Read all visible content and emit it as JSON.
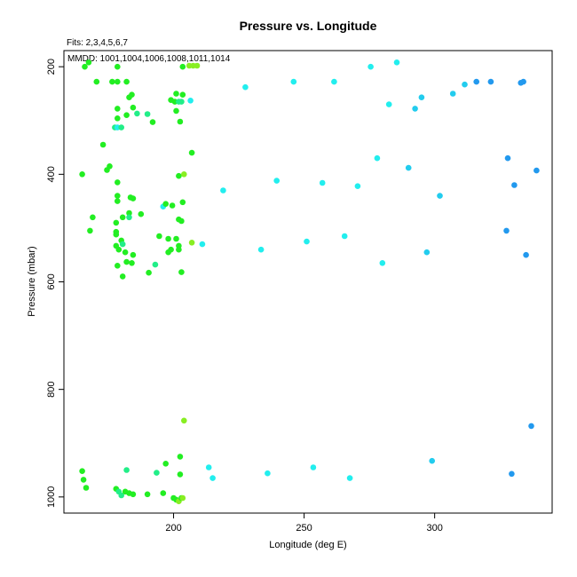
{
  "chart_data": {
    "type": "scatter",
    "title": "Pressure vs. Longitude",
    "annotations": {
      "fits": "Fits: 2,3,4,5,6,7",
      "mmdd": "MMDD: 1001,1004,1006,1008,1011,1014"
    },
    "xlabel": "Longitude (deg E)",
    "ylabel": "Pressure (mbar)",
    "xlim": [
      158,
      345
    ],
    "ylim": [
      1030,
      170
    ],
    "y_inverted": true,
    "xticks": [
      200,
      250,
      300
    ],
    "yticks": [
      200,
      400,
      600,
      800,
      1000
    ],
    "grid": false,
    "colors": {
      "green": "#22ee22",
      "lime": "#88ee22",
      "spring": "#22ee88",
      "cyan": "#22eeee",
      "sky": "#22ccee",
      "blue": "#2299ee"
    },
    "points": [
      {
        "x": 167.5,
        "y": 192,
        "c": "green"
      },
      {
        "x": 166,
        "y": 200,
        "c": "green"
      },
      {
        "x": 170.5,
        "y": 228,
        "c": "green"
      },
      {
        "x": 176.5,
        "y": 228,
        "c": "green"
      },
      {
        "x": 178.5,
        "y": 200,
        "c": "green"
      },
      {
        "x": 178.5,
        "y": 228,
        "c": "green"
      },
      {
        "x": 182,
        "y": 228,
        "c": "green"
      },
      {
        "x": 183,
        "y": 257,
        "c": "green"
      },
      {
        "x": 184,
        "y": 252,
        "c": "green"
      },
      {
        "x": 178.5,
        "y": 278,
        "c": "green"
      },
      {
        "x": 178.5,
        "y": 296,
        "c": "green"
      },
      {
        "x": 182,
        "y": 290,
        "c": "green"
      },
      {
        "x": 184.5,
        "y": 276,
        "c": "green"
      },
      {
        "x": 186,
        "y": 287,
        "c": "spring"
      },
      {
        "x": 190,
        "y": 288,
        "c": "spring"
      },
      {
        "x": 192,
        "y": 303,
        "c": "green"
      },
      {
        "x": 177.5,
        "y": 313,
        "c": "spring"
      },
      {
        "x": 178.5,
        "y": 313,
        "c": "cyan"
      },
      {
        "x": 180,
        "y": 313,
        "c": "spring"
      },
      {
        "x": 173,
        "y": 345,
        "c": "green"
      },
      {
        "x": 174.5,
        "y": 392,
        "c": "green"
      },
      {
        "x": 175.5,
        "y": 385,
        "c": "green"
      },
      {
        "x": 165,
        "y": 400,
        "c": "green"
      },
      {
        "x": 178.5,
        "y": 415,
        "c": "green"
      },
      {
        "x": 178.5,
        "y": 440,
        "c": "green"
      },
      {
        "x": 178.5,
        "y": 450,
        "c": "green"
      },
      {
        "x": 183.5,
        "y": 443,
        "c": "green"
      },
      {
        "x": 184.5,
        "y": 445,
        "c": "green"
      },
      {
        "x": 169,
        "y": 480,
        "c": "green"
      },
      {
        "x": 168,
        "y": 505,
        "c": "green"
      },
      {
        "x": 178,
        "y": 490,
        "c": "green"
      },
      {
        "x": 178,
        "y": 507,
        "c": "green"
      },
      {
        "x": 178,
        "y": 512,
        "c": "green"
      },
      {
        "x": 180.5,
        "y": 480,
        "c": "green"
      },
      {
        "x": 183,
        "y": 472,
        "c": "green"
      },
      {
        "x": 183,
        "y": 480,
        "c": "spring"
      },
      {
        "x": 187.5,
        "y": 474,
        "c": "green"
      },
      {
        "x": 178,
        "y": 533,
        "c": "green"
      },
      {
        "x": 180,
        "y": 523,
        "c": "green"
      },
      {
        "x": 180.5,
        "y": 530,
        "c": "spring"
      },
      {
        "x": 179,
        "y": 540,
        "c": "green"
      },
      {
        "x": 181.5,
        "y": 545,
        "c": "green"
      },
      {
        "x": 184.5,
        "y": 550,
        "c": "green"
      },
      {
        "x": 182,
        "y": 563,
        "c": "green"
      },
      {
        "x": 184,
        "y": 565,
        "c": "green"
      },
      {
        "x": 178.5,
        "y": 570,
        "c": "green"
      },
      {
        "x": 180.5,
        "y": 590,
        "c": "green"
      },
      {
        "x": 190.5,
        "y": 583,
        "c": "green"
      },
      {
        "x": 193,
        "y": 568,
        "c": "spring"
      },
      {
        "x": 194.5,
        "y": 515,
        "c": "green"
      },
      {
        "x": 196,
        "y": 460,
        "c": "cyan"
      },
      {
        "x": 197,
        "y": 455,
        "c": "green"
      },
      {
        "x": 199.5,
        "y": 458,
        "c": "green"
      },
      {
        "x": 198,
        "y": 520,
        "c": "green"
      },
      {
        "x": 198,
        "y": 545,
        "c": "green"
      },
      {
        "x": 199,
        "y": 540,
        "c": "green"
      },
      {
        "x": 201,
        "y": 520,
        "c": "green"
      },
      {
        "x": 202,
        "y": 533,
        "c": "green"
      },
      {
        "x": 202,
        "y": 540,
        "c": "green"
      },
      {
        "x": 202,
        "y": 484,
        "c": "green"
      },
      {
        "x": 203,
        "y": 487,
        "c": "green"
      },
      {
        "x": 203,
        "y": 582,
        "c": "green"
      },
      {
        "x": 203.5,
        "y": 452,
        "c": "green"
      },
      {
        "x": 207,
        "y": 527,
        "c": "lime"
      },
      {
        "x": 211,
        "y": 530,
        "c": "cyan"
      },
      {
        "x": 199,
        "y": 262,
        "c": "green"
      },
      {
        "x": 200.5,
        "y": 265,
        "c": "green"
      },
      {
        "x": 201,
        "y": 250,
        "c": "green"
      },
      {
        "x": 202,
        "y": 265,
        "c": "spring"
      },
      {
        "x": 203,
        "y": 265,
        "c": "spring"
      },
      {
        "x": 203.5,
        "y": 252,
        "c": "green"
      },
      {
        "x": 201,
        "y": 282,
        "c": "green"
      },
      {
        "x": 202.5,
        "y": 302,
        "c": "green"
      },
      {
        "x": 203.5,
        "y": 200,
        "c": "green"
      },
      {
        "x": 206,
        "y": 198,
        "c": "lime"
      },
      {
        "x": 207.5,
        "y": 198,
        "c": "lime"
      },
      {
        "x": 209,
        "y": 198,
        "c": "lime"
      },
      {
        "x": 206.5,
        "y": 263,
        "c": "cyan"
      },
      {
        "x": 207,
        "y": 360,
        "c": "green"
      },
      {
        "x": 202,
        "y": 403,
        "c": "green"
      },
      {
        "x": 204,
        "y": 400,
        "c": "lime"
      },
      {
        "x": 227.5,
        "y": 238,
        "c": "cyan"
      },
      {
        "x": 246,
        "y": 228,
        "c": "cyan"
      },
      {
        "x": 261.5,
        "y": 228,
        "c": "cyan"
      },
      {
        "x": 275.5,
        "y": 200,
        "c": "cyan"
      },
      {
        "x": 285.5,
        "y": 192,
        "c": "cyan"
      },
      {
        "x": 282.5,
        "y": 270,
        "c": "cyan"
      },
      {
        "x": 292.5,
        "y": 278,
        "c": "sky"
      },
      {
        "x": 295,
        "y": 257,
        "c": "sky"
      },
      {
        "x": 307,
        "y": 250,
        "c": "sky"
      },
      {
        "x": 311.5,
        "y": 233,
        "c": "sky"
      },
      {
        "x": 316,
        "y": 228,
        "c": "blue"
      },
      {
        "x": 321.5,
        "y": 228,
        "c": "blue"
      },
      {
        "x": 333,
        "y": 230,
        "c": "blue"
      },
      {
        "x": 334,
        "y": 228,
        "c": "blue"
      },
      {
        "x": 278,
        "y": 370,
        "c": "cyan"
      },
      {
        "x": 290,
        "y": 388,
        "c": "sky"
      },
      {
        "x": 328,
        "y": 370,
        "c": "blue"
      },
      {
        "x": 339,
        "y": 393,
        "c": "blue"
      },
      {
        "x": 219,
        "y": 430,
        "c": "cyan"
      },
      {
        "x": 239.5,
        "y": 412,
        "c": "cyan"
      },
      {
        "x": 257,
        "y": 416,
        "c": "cyan"
      },
      {
        "x": 270.5,
        "y": 422,
        "c": "cyan"
      },
      {
        "x": 302,
        "y": 440,
        "c": "sky"
      },
      {
        "x": 330.5,
        "y": 420,
        "c": "blue"
      },
      {
        "x": 233.5,
        "y": 540,
        "c": "cyan"
      },
      {
        "x": 251,
        "y": 525,
        "c": "cyan"
      },
      {
        "x": 265.5,
        "y": 515,
        "c": "cyan"
      },
      {
        "x": 280,
        "y": 565,
        "c": "cyan"
      },
      {
        "x": 297,
        "y": 545,
        "c": "sky"
      },
      {
        "x": 327.5,
        "y": 505,
        "c": "blue"
      },
      {
        "x": 335,
        "y": 550,
        "c": "blue"
      },
      {
        "x": 204,
        "y": 858,
        "c": "lime"
      },
      {
        "x": 337,
        "y": 868,
        "c": "blue"
      },
      {
        "x": 165,
        "y": 952,
        "c": "green"
      },
      {
        "x": 165.5,
        "y": 968,
        "c": "green"
      },
      {
        "x": 166.5,
        "y": 983,
        "c": "green"
      },
      {
        "x": 178,
        "y": 985,
        "c": "green"
      },
      {
        "x": 179,
        "y": 990,
        "c": "spring"
      },
      {
        "x": 180,
        "y": 997,
        "c": "spring"
      },
      {
        "x": 181.5,
        "y": 990,
        "c": "green"
      },
      {
        "x": 183,
        "y": 993,
        "c": "green"
      },
      {
        "x": 184.5,
        "y": 995,
        "c": "green"
      },
      {
        "x": 182,
        "y": 950,
        "c": "spring"
      },
      {
        "x": 190,
        "y": 995,
        "c": "green"
      },
      {
        "x": 193.5,
        "y": 955,
        "c": "spring"
      },
      {
        "x": 196,
        "y": 993,
        "c": "green"
      },
      {
        "x": 197,
        "y": 938,
        "c": "green"
      },
      {
        "x": 200,
        "y": 1002,
        "c": "green"
      },
      {
        "x": 201,
        "y": 1005,
        "c": "green"
      },
      {
        "x": 202,
        "y": 1008,
        "c": "lime"
      },
      {
        "x": 202.5,
        "y": 925,
        "c": "green"
      },
      {
        "x": 202.5,
        "y": 958,
        "c": "green"
      },
      {
        "x": 203,
        "y": 1002,
        "c": "green"
      },
      {
        "x": 203.5,
        "y": 1002,
        "c": "lime"
      },
      {
        "x": 213.5,
        "y": 945,
        "c": "cyan"
      },
      {
        "x": 215,
        "y": 965,
        "c": "cyan"
      },
      {
        "x": 236,
        "y": 956,
        "c": "cyan"
      },
      {
        "x": 253.5,
        "y": 945,
        "c": "cyan"
      },
      {
        "x": 267.5,
        "y": 965,
        "c": "cyan"
      },
      {
        "x": 299,
        "y": 933,
        "c": "sky"
      },
      {
        "x": 329.5,
        "y": 957,
        "c": "blue"
      }
    ]
  }
}
